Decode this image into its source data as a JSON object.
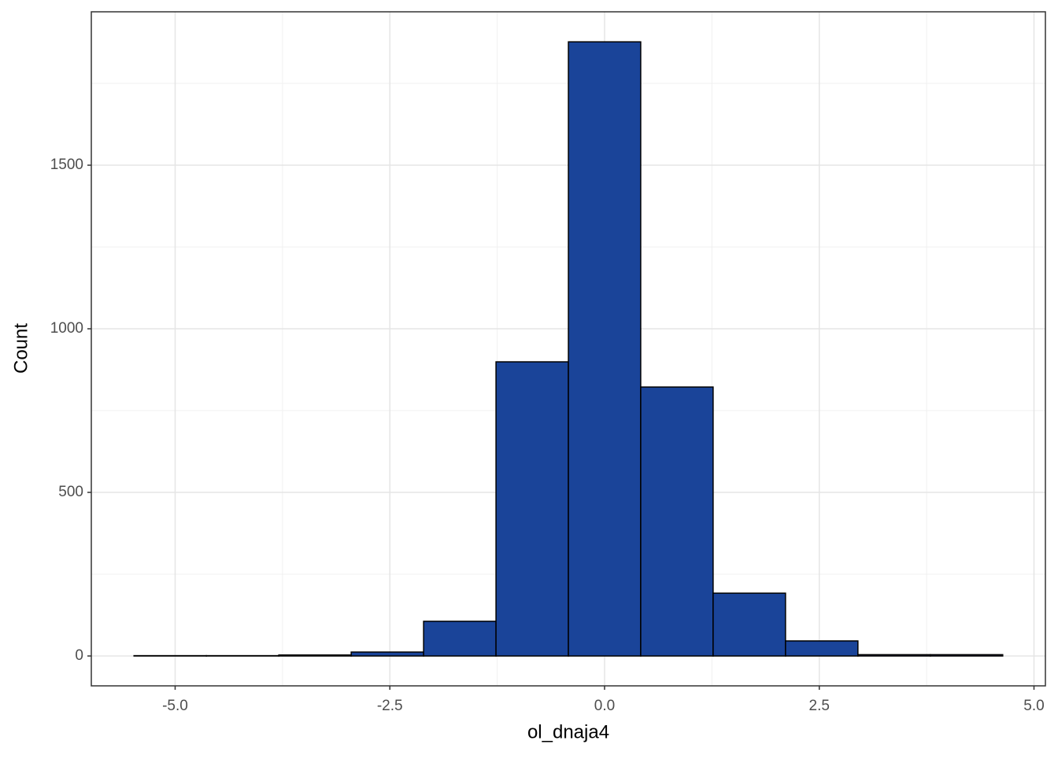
{
  "chart_data": {
    "type": "histogram",
    "x_label": "ol_dnaja4",
    "y_label": "Count",
    "bins": [
      -5.479,
      -4.636,
      -3.793,
      -2.95,
      -2.107,
      -1.264,
      -0.421,
      0.421,
      1.264,
      2.107,
      2.95,
      3.793,
      4.636
    ],
    "counts": [
      1,
      1,
      3,
      12,
      106,
      899,
      1877,
      822,
      192,
      46,
      4,
      4
    ],
    "color": "#1a4499",
    "edge_color": "#000000",
    "xlim": [
      -5.976,
      5.133
    ],
    "ylim": [
      -91.3,
      1968.8
    ],
    "xticks": [
      {
        "value": -5,
        "label": "-5.0"
      },
      -2.5,
      {
        "value": 0,
        "label": "0.0"
      },
      2.5,
      {
        "value": 5,
        "label": "5.0"
      }
    ],
    "yticks": [
      0,
      500,
      1000,
      1500
    ],
    "grid": true
  }
}
